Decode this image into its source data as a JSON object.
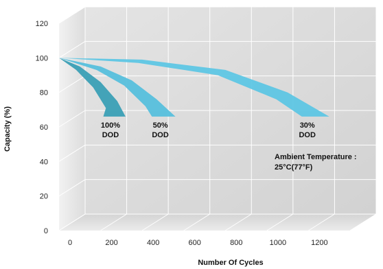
{
  "chart_data": {
    "type": "area",
    "xlabel": "Number Of Cycles",
    "ylabel": "Capacity (%)",
    "xlim": [
      0,
      1400
    ],
    "ylim": [
      0,
      120
    ],
    "x_ticks": [
      "0",
      "200",
      "400",
      "600",
      "800",
      "1000",
      "1200"
    ],
    "y_ticks": [
      "0",
      "20",
      "40",
      "60",
      "80",
      "100",
      "120"
    ],
    "grid": true,
    "series": [
      {
        "label_lines": [
          "100%",
          "DOD"
        ],
        "color": "#3a9fb5",
        "points": [
          [
            0,
            100
          ],
          [
            100,
            95
          ],
          [
            200,
            86
          ],
          [
            280,
            75
          ],
          [
            320,
            66
          ]
        ]
      },
      {
        "label_lines": [
          "50%",
          "DOD"
        ],
        "color": "#56bfdc",
        "points": [
          [
            0,
            100
          ],
          [
            200,
            95
          ],
          [
            350,
            87
          ],
          [
            470,
            76
          ],
          [
            560,
            66
          ]
        ]
      },
      {
        "label_lines": [
          "30%",
          "DOD"
        ],
        "color": "#5ec6e4",
        "points": [
          [
            0,
            100
          ],
          [
            400,
            99
          ],
          [
            800,
            93
          ],
          [
            1100,
            80
          ],
          [
            1300,
            66
          ]
        ]
      }
    ],
    "annotation": {
      "lines": [
        "Ambient Temperature :",
        "25°C(77°F)"
      ]
    }
  }
}
